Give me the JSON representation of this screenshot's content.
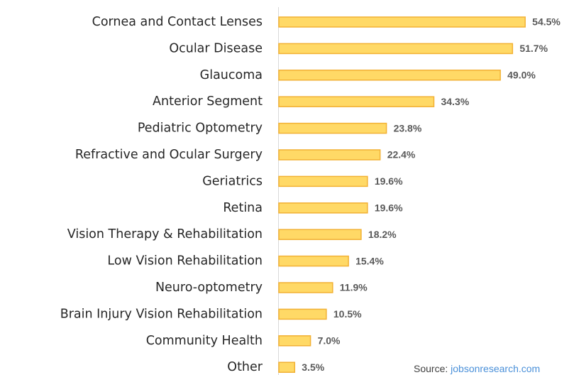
{
  "chart_data": {
    "type": "bar",
    "orientation": "horizontal",
    "categories": [
      "Cornea and Contact Lenses",
      "Ocular Disease",
      "Glaucoma",
      "Anterior Segment",
      "Pediatric Optometry",
      "Refractive and Ocular Surgery",
      "Geriatrics",
      "Retina",
      "Vision Therapy & Rehabilitation",
      "Low Vision Rehabilitation",
      "Neuro-optometry",
      "Brain Injury Vision Rehabilitation",
      "Community Health",
      "Other"
    ],
    "values": [
      54.5,
      51.7,
      49.0,
      34.3,
      23.8,
      22.4,
      19.6,
      19.6,
      18.2,
      15.4,
      11.9,
      10.5,
      7.0,
      3.5
    ],
    "value_labels": [
      "54.5%",
      "51.7%",
      "49.0%",
      "34.3%",
      "23.8%",
      "22.4%",
      "19.6%",
      "19.6%",
      "18.2%",
      "15.4%",
      "11.9%",
      "10.5%",
      "7.0%",
      "3.5%"
    ],
    "color": "#ffd966",
    "edge_color": "#f2b134",
    "source": {
      "prefix": "Source:",
      "link": "jobsonresearch.com"
    }
  }
}
